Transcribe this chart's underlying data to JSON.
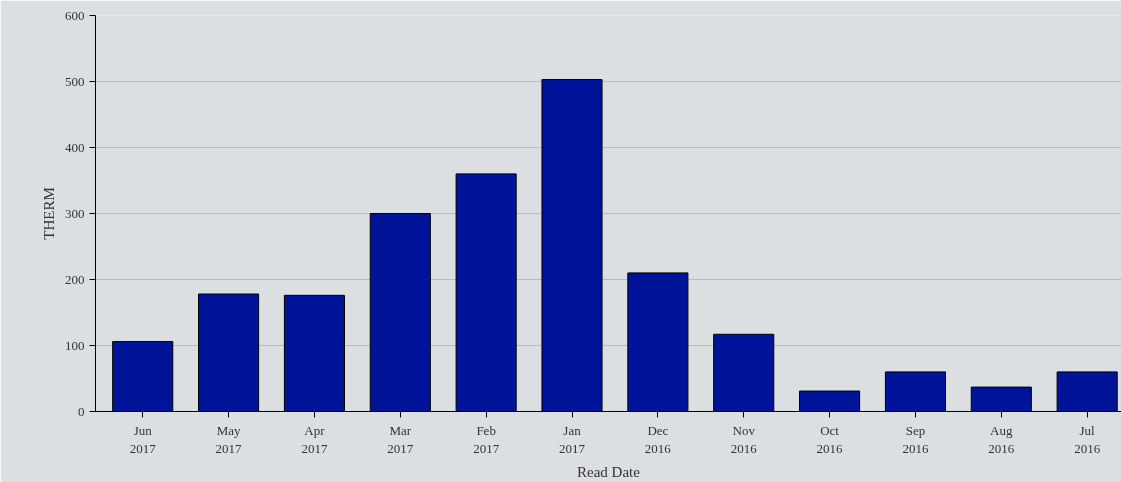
{
  "chart_data": {
    "type": "bar",
    "xlabel": "Read Date",
    "ylabel": "THERM",
    "categories": [
      "Jun\n2017",
      "May\n2017",
      "Apr\n2017",
      "Mar\n2017",
      "Feb\n2017",
      "Jan\n2017",
      "Dec\n2016",
      "Nov\n2016",
      "Oct\n2016",
      "Sep\n2016",
      "Aug\n2016",
      "Jul\n2016"
    ],
    "values": [
      106,
      178,
      176,
      300,
      360,
      503,
      210,
      117,
      31,
      60,
      37,
      60
    ],
    "color": "#00149a",
    "ylim": [
      0,
      600
    ],
    "yticks": [
      0,
      100,
      200,
      300,
      400,
      500,
      600
    ],
    "grid": "y"
  }
}
